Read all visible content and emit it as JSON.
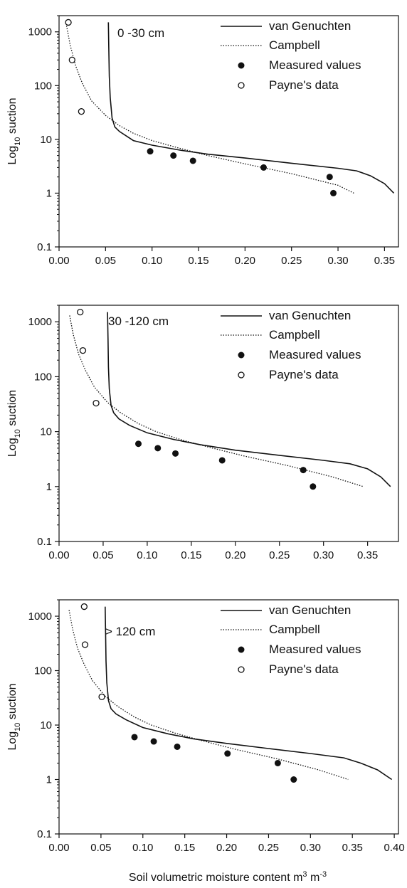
{
  "colors": {
    "ink": "#111111",
    "background": "#ffffff"
  },
  "xlabel": "Soil volumetric moisture content m",
  "xlabel_unit_sup1": "3",
  "xlabel_unit_mid": " m",
  "xlabel_unit_sup2": "-3",
  "ylabel_main": "Log",
  "ylabel_sub": "10",
  "ylabel_rest": " suction",
  "legend": {
    "van_genuchten": "van Genuchten",
    "campbell": "Campbell",
    "measured": "Measured values",
    "payne": "Payne's data"
  },
  "chart_data": [
    {
      "type": "line",
      "depth_label": "0 -30 cm",
      "y_scale": "log",
      "ylim": [
        0.1,
        2000
      ],
      "xlim": [
        0.0,
        0.365
      ],
      "x_ticks": [
        "0.00",
        "0.05",
        "0.10",
        "0.15",
        "0.20",
        "0.25",
        "0.30",
        "0.35"
      ],
      "y_ticks": [
        "0.1",
        "1",
        "10",
        "100",
        "1000"
      ],
      "grid": false,
      "legend_position": "top-right",
      "van_genuchten": {
        "x": [
          0.053,
          0.0535,
          0.054,
          0.055,
          0.057,
          0.06,
          0.065,
          0.08,
          0.1,
          0.13,
          0.16,
          0.2,
          0.25,
          0.3,
          0.32,
          0.335,
          0.35,
          0.36
        ],
        "y": [
          1500,
          500,
          150,
          60,
          25,
          17,
          14,
          9.5,
          7.8,
          6.3,
          5.3,
          4.5,
          3.6,
          2.9,
          2.6,
          2.1,
          1.5,
          1.0
        ]
      },
      "campbell": {
        "x": [
          0.008,
          0.012,
          0.018,
          0.025,
          0.035,
          0.05,
          0.065,
          0.08,
          0.1,
          0.13,
          0.16,
          0.2,
          0.25,
          0.3,
          0.317
        ],
        "y": [
          1300,
          560,
          230,
          110,
          52,
          28,
          18,
          13,
          9.5,
          6.8,
          5.0,
          3.5,
          2.3,
          1.4,
          1.0
        ]
      },
      "measured": {
        "x": [
          0.098,
          0.123,
          0.144,
          0.22,
          0.291,
          0.295
        ],
        "y": [
          6,
          5,
          4,
          3,
          2,
          1
        ]
      },
      "payne": {
        "x": [
          0.01,
          0.014,
          0.024
        ],
        "y": [
          1500,
          300,
          33
        ]
      }
    },
    {
      "type": "line",
      "depth_label": "30 -120 cm",
      "y_scale": "log",
      "ylim": [
        0.1,
        2000
      ],
      "xlim": [
        0.0,
        0.385
      ],
      "x_ticks": [
        "0.00",
        "0.05",
        "0.10",
        "0.15",
        "0.20",
        "0.25",
        "0.30",
        "0.35"
      ],
      "y_ticks": [
        "0.1",
        "1",
        "10",
        "100",
        "1000"
      ],
      "grid": false,
      "legend_position": "top-right",
      "van_genuchten": {
        "x": [
          0.055,
          0.0555,
          0.056,
          0.057,
          0.059,
          0.062,
          0.068,
          0.08,
          0.1,
          0.13,
          0.16,
          0.2,
          0.25,
          0.3,
          0.33,
          0.35,
          0.365,
          0.376
        ],
        "y": [
          1500,
          500,
          150,
          60,
          30,
          22,
          17,
          13,
          9.5,
          7.2,
          5.8,
          4.6,
          3.7,
          3.0,
          2.6,
          2.1,
          1.5,
          1.0
        ]
      },
      "campbell": {
        "x": [
          0.012,
          0.016,
          0.022,
          0.03,
          0.04,
          0.055,
          0.07,
          0.09,
          0.11,
          0.14,
          0.17,
          0.21,
          0.26,
          0.31,
          0.345
        ],
        "y": [
          1300,
          600,
          260,
          130,
          65,
          34,
          22,
          14,
          10,
          7.0,
          5.2,
          3.6,
          2.4,
          1.5,
          1.0
        ]
      },
      "measured": {
        "x": [
          0.09,
          0.112,
          0.132,
          0.185,
          0.277,
          0.288
        ],
        "y": [
          6,
          5,
          4,
          3,
          2,
          1
        ]
      },
      "payne": {
        "x": [
          0.024,
          0.027,
          0.042
        ],
        "y": [
          1500,
          300,
          33
        ]
      }
    },
    {
      "type": "line",
      "depth_label": "> 120 cm",
      "y_scale": "log",
      "ylim": [
        0.1,
        2000
      ],
      "xlim": [
        0.0,
        0.405
      ],
      "x_ticks": [
        "0.00",
        "0.05",
        "0.10",
        "0.15",
        "0.20",
        "0.25",
        "0.30",
        "0.35",
        "0.40"
      ],
      "y_ticks": [
        "0.1",
        "1",
        "10",
        "100",
        "1000"
      ],
      "grid": false,
      "legend_position": "top-right",
      "van_genuchten": {
        "x": [
          0.055,
          0.0555,
          0.056,
          0.057,
          0.059,
          0.062,
          0.068,
          0.08,
          0.1,
          0.13,
          0.16,
          0.2,
          0.25,
          0.3,
          0.34,
          0.36,
          0.38,
          0.397
        ],
        "y": [
          1500,
          500,
          150,
          60,
          28,
          20,
          16,
          12.5,
          9.0,
          6.9,
          5.6,
          4.6,
          3.7,
          3.0,
          2.5,
          2.0,
          1.5,
          1.0
        ]
      },
      "campbell": {
        "x": [
          0.012,
          0.016,
          0.022,
          0.03,
          0.04,
          0.055,
          0.07,
          0.09,
          0.11,
          0.14,
          0.17,
          0.21,
          0.26,
          0.31,
          0.345
        ],
        "y": [
          1300,
          600,
          260,
          130,
          65,
          34,
          22,
          14,
          10,
          7.0,
          5.2,
          3.6,
          2.4,
          1.5,
          1.0
        ]
      },
      "measured": {
        "x": [
          0.09,
          0.113,
          0.141,
          0.201,
          0.261,
          0.28
        ],
        "y": [
          6,
          5,
          4,
          3,
          2,
          1
        ]
      },
      "payne": {
        "x": [
          0.03,
          0.031,
          0.051
        ],
        "y": [
          1500,
          300,
          33
        ]
      }
    }
  ]
}
